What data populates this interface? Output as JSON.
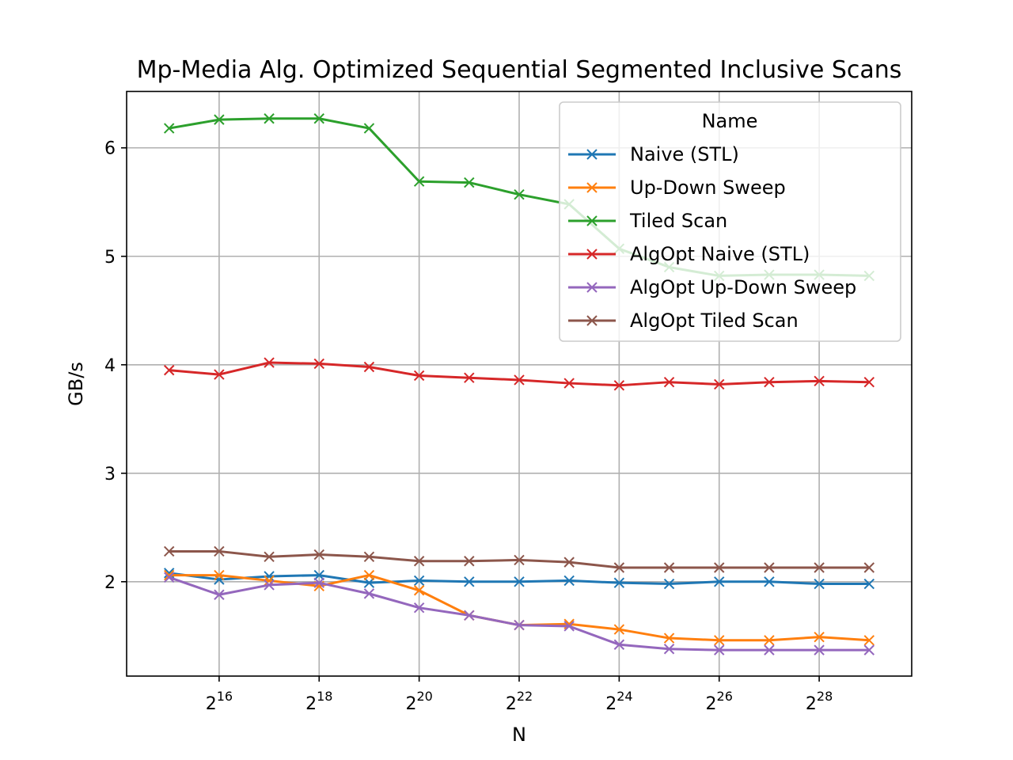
{
  "chart_data": {
    "type": "line",
    "title": "Mp-Media Alg. Optimized Sequential Segmented Inclusive Scans",
    "xlabel": "N",
    "ylabel": "GB/s",
    "x_scale": "log2",
    "x": [
      15,
      16,
      17,
      18,
      19,
      20,
      21,
      22,
      23,
      24,
      25,
      26,
      27,
      28,
      29
    ],
    "xlim": [
      14.15,
      29.85
    ],
    "ylim": [
      1.13,
      6.52
    ],
    "x_ticks": [
      {
        "exp": 16,
        "base": "2",
        "sup": "16"
      },
      {
        "exp": 18,
        "base": "2",
        "sup": "18"
      },
      {
        "exp": 20,
        "base": "2",
        "sup": "20"
      },
      {
        "exp": 22,
        "base": "2",
        "sup": "22"
      },
      {
        "exp": 24,
        "base": "2",
        "sup": "24"
      },
      {
        "exp": 26,
        "base": "2",
        "sup": "26"
      },
      {
        "exp": 28,
        "base": "2",
        "sup": "28"
      }
    ],
    "y_ticks": [
      2,
      3,
      4,
      5,
      6
    ],
    "grid": true,
    "legend": {
      "title": "Name",
      "placement": "top-right"
    },
    "marker": "x",
    "series": [
      {
        "name": "Naive (STL)",
        "color": "#1f77b4",
        "values": [
          2.08,
          2.02,
          2.05,
          2.06,
          1.99,
          2.01,
          2.0,
          2.0,
          2.01,
          1.99,
          1.98,
          2.0,
          2.0,
          1.98,
          1.98
        ]
      },
      {
        "name": "Up-Down Sweep",
        "color": "#ff7f0e",
        "values": [
          2.06,
          2.06,
          2.01,
          1.96,
          2.06,
          1.92,
          1.69,
          1.6,
          1.61,
          1.56,
          1.48,
          1.46,
          1.46,
          1.49,
          1.46
        ]
      },
      {
        "name": "Tiled Scan",
        "color": "#2ca02c",
        "values": [
          6.18,
          6.26,
          6.27,
          6.27,
          6.18,
          5.69,
          5.68,
          5.57,
          5.48,
          5.07,
          4.9,
          4.82,
          4.83,
          4.83,
          4.82
        ]
      },
      {
        "name": "AlgOpt Naive (STL)",
        "color": "#d62728",
        "values": [
          3.95,
          3.91,
          4.02,
          4.01,
          3.98,
          3.9,
          3.88,
          3.86,
          3.83,
          3.81,
          3.84,
          3.82,
          3.84,
          3.85,
          3.84
        ]
      },
      {
        "name": "AlgOpt Up-Down Sweep",
        "color": "#9467bd",
        "values": [
          2.04,
          1.88,
          1.97,
          1.99,
          1.89,
          1.76,
          1.69,
          1.6,
          1.59,
          1.42,
          1.38,
          1.37,
          1.37,
          1.37,
          1.37
        ]
      },
      {
        "name": "AlgOpt Tiled Scan",
        "color": "#8c564b",
        "values": [
          2.28,
          2.28,
          2.23,
          2.25,
          2.23,
          2.19,
          2.19,
          2.2,
          2.18,
          2.13,
          2.13,
          2.13,
          2.13,
          2.13,
          2.13
        ]
      }
    ]
  }
}
